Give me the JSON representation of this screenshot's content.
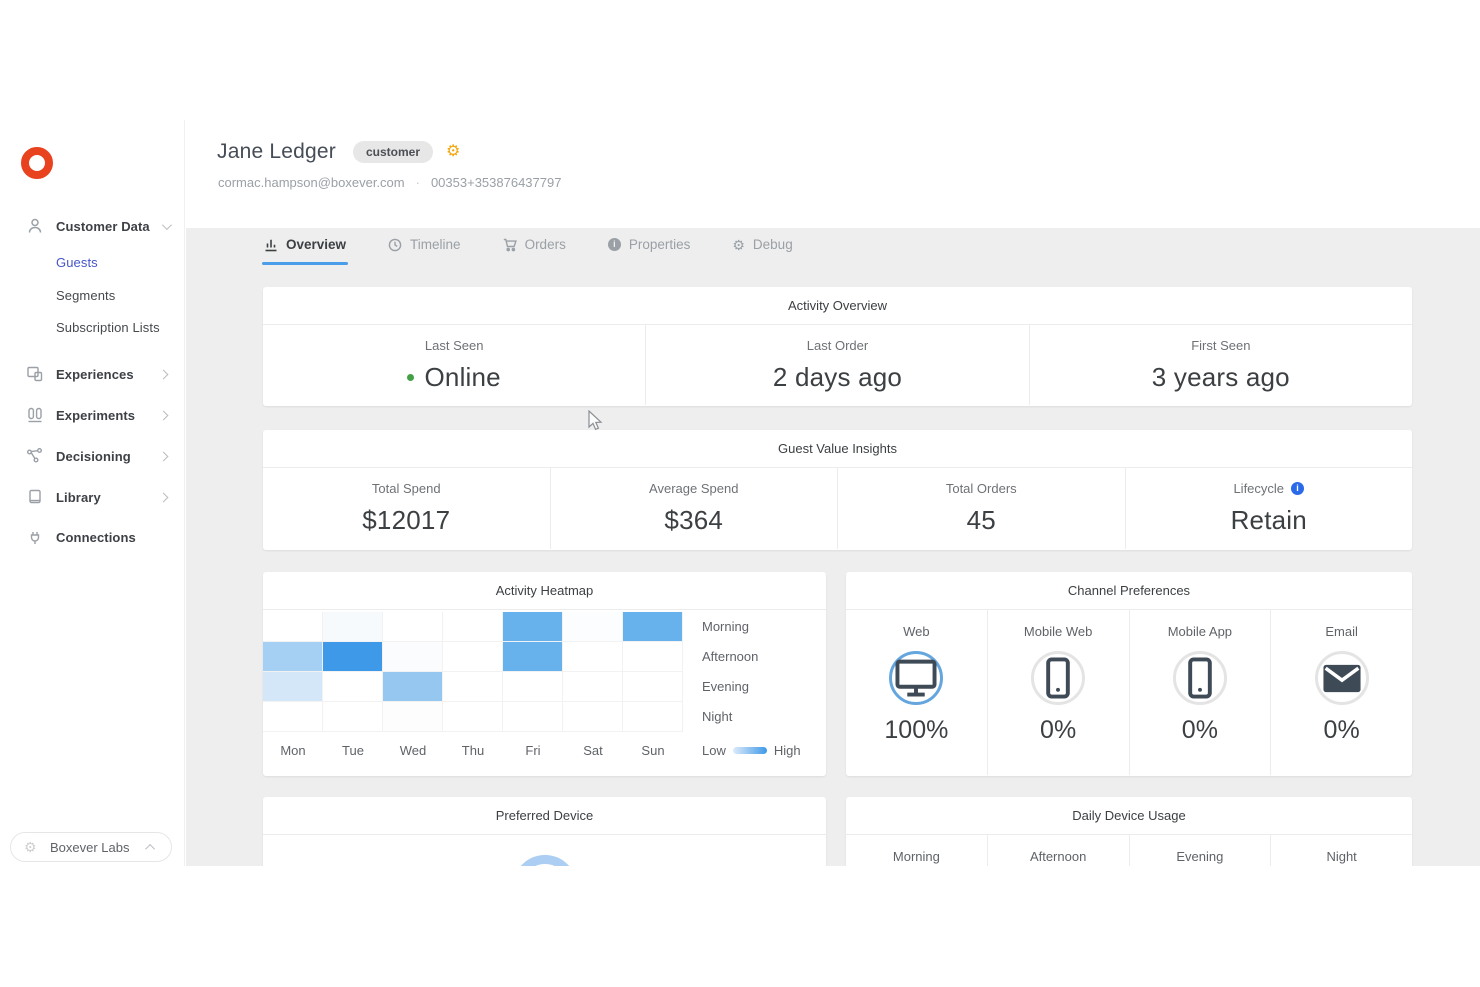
{
  "profile": {
    "name": "Jane Ledger",
    "badge": "customer",
    "email": "cormac.hampson@boxever.com",
    "separator": "·",
    "phone": "00353+353876437797"
  },
  "sidebar": {
    "items": [
      {
        "label": "Customer Data",
        "icon": "person",
        "chevron": "down",
        "type": "parent"
      },
      {
        "label": "Guests",
        "type": "child",
        "active": true
      },
      {
        "label": "Segments",
        "type": "child"
      },
      {
        "label": "Subscription Lists",
        "type": "child"
      },
      {
        "label": "Experiences",
        "icon": "experiences",
        "chevron": "right",
        "type": "parent"
      },
      {
        "label": "Experiments",
        "icon": "experiments",
        "chevron": "right",
        "type": "parent"
      },
      {
        "label": "Decisioning",
        "icon": "decisioning",
        "chevron": "right",
        "type": "parent"
      },
      {
        "label": "Library",
        "icon": "library",
        "chevron": "right",
        "type": "parent"
      },
      {
        "label": "Connections",
        "icon": "connections",
        "type": "parent"
      }
    ],
    "footer_label": "Boxever Labs"
  },
  "tabs": [
    {
      "label": "Overview",
      "icon": "chart",
      "active": true
    },
    {
      "label": "Timeline",
      "icon": "clock",
      "active": false
    },
    {
      "label": "Orders",
      "icon": "cart",
      "active": false
    },
    {
      "label": "Properties",
      "icon": "info",
      "active": false
    },
    {
      "label": "Debug",
      "icon": "gear",
      "active": false
    }
  ],
  "activity_overview": {
    "title": "Activity Overview",
    "metrics": [
      {
        "label": "Last Seen",
        "value": "Online",
        "online_dot": true
      },
      {
        "label": "Last Order",
        "value": "2 days ago"
      },
      {
        "label": "First Seen",
        "value": "3 years ago"
      }
    ]
  },
  "guest_value_insights": {
    "title": "Guest Value Insights",
    "metrics": [
      {
        "label": "Total Spend",
        "value": "$12017"
      },
      {
        "label": "Average Spend",
        "value": "$364"
      },
      {
        "label": "Total Orders",
        "value": "45"
      },
      {
        "label": "Lifecycle",
        "value": "Retain",
        "info_icon": true
      }
    ]
  },
  "activity_heatmap": {
    "title": "Activity Heatmap",
    "row_labels": [
      "Morning",
      "Afternoon",
      "Evening",
      "Night"
    ],
    "day_labels": [
      "Mon",
      "Tue",
      "Wed",
      "Thu",
      "Fri",
      "Sat",
      "Sun"
    ],
    "legend_low": "Low",
    "legend_high": "High",
    "cell_colors": [
      [
        "#ffffff",
        "#f7fafd",
        "#ffffff",
        "#ffffff",
        "#67b1ed",
        "#fbfdfe",
        "#67b1ed"
      ],
      [
        "#a5cff3",
        "#3e99e8",
        "#fafcfe",
        "#ffffff",
        "#67b1ed",
        "#ffffff",
        "#ffffff"
      ],
      [
        "#d3e7f9",
        "#ffffff",
        "#96c7f1",
        "#ffffff",
        "#ffffff",
        "#ffffff",
        "#ffffff"
      ],
      [
        "#ffffff",
        "#ffffff",
        "#fdfdfe",
        "#ffffff",
        "#ffffff",
        "#ffffff",
        "#ffffff"
      ]
    ]
  },
  "channel_preferences": {
    "title": "Channel Preferences",
    "channels": [
      {
        "label": "Web",
        "icon": "monitor",
        "value": "100%",
        "ring_color": "#64a6dd"
      },
      {
        "label": "Mobile Web",
        "icon": "smartphone",
        "value": "0%",
        "ring_color": "#e4e4e4"
      },
      {
        "label": "Mobile App",
        "icon": "smartphone",
        "value": "0%",
        "ring_color": "#e4e4e4"
      },
      {
        "label": "Email",
        "icon": "envelope",
        "value": "0%",
        "ring_color": "#e4e4e4"
      }
    ]
  },
  "preferred_device": {
    "title": "Preferred Device"
  },
  "daily_device_usage": {
    "title": "Daily Device Usage",
    "column_headers": [
      "Morning",
      "Afternoon",
      "Evening",
      "Night"
    ]
  },
  "colors": {
    "accent_blue": "#4a9de8",
    "active_link_blue": "#4656c9",
    "online_green": "#43a047",
    "gear_orange": "#f2a60d",
    "logo_red": "#e8421f",
    "content_background": "#eeeeee"
  },
  "chart_data": {
    "type": "heatmap",
    "title": "Activity Heatmap",
    "x": [
      "Mon",
      "Tue",
      "Wed",
      "Thu",
      "Fri",
      "Sat",
      "Sun"
    ],
    "y": [
      "Morning",
      "Afternoon",
      "Evening",
      "Night"
    ],
    "values": [
      [
        0,
        0.05,
        0,
        0,
        0.6,
        0.02,
        0.6
      ],
      [
        0.35,
        0.8,
        0.03,
        0,
        0.6,
        0,
        0
      ],
      [
        0.18,
        0,
        0.42,
        0,
        0,
        0,
        0
      ],
      [
        0,
        0,
        0.01,
        0,
        0,
        0,
        0
      ]
    ],
    "legend": "Low → High",
    "scale_note": "0 = white (no activity), 1 = saturated blue (max activity)",
    "legend_position": "bottom-right"
  }
}
